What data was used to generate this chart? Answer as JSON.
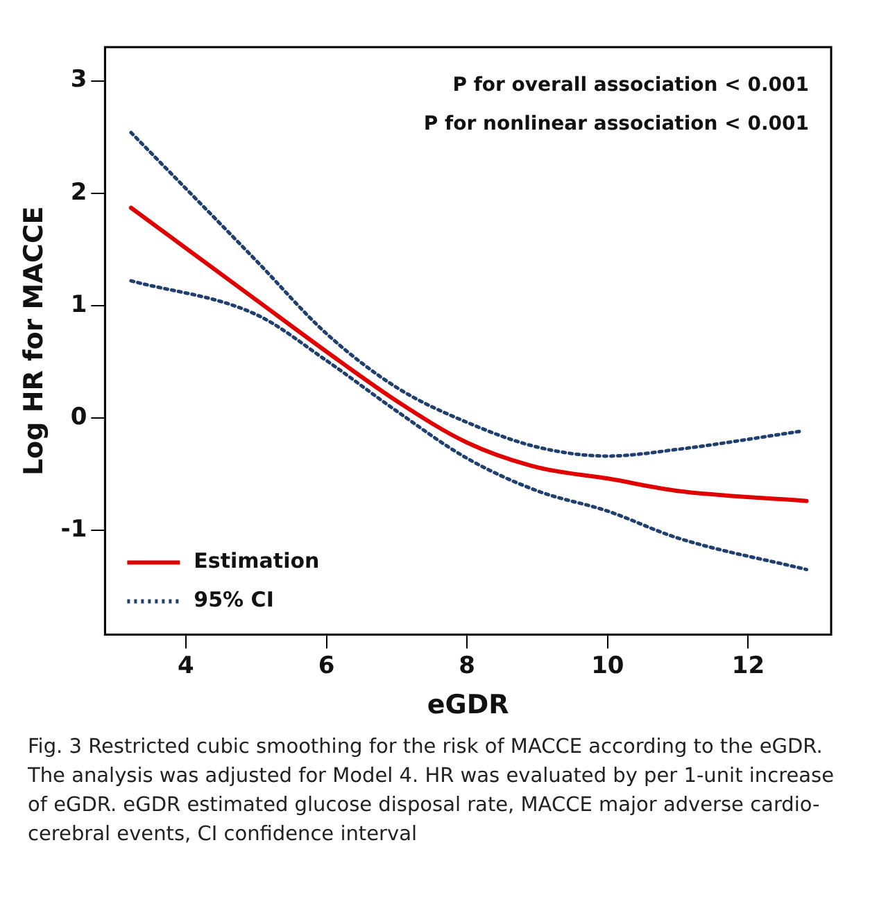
{
  "chart_data": {
    "type": "line",
    "xlabel": "eGDR",
    "ylabel": "Log HR for MACCE",
    "xlim": [
      2.85,
      13.18
    ],
    "xticks": [
      4,
      6,
      8,
      10,
      12
    ],
    "ylim": [
      -1.93,
      3.3
    ],
    "yticks": [
      -1,
      0,
      1,
      2,
      3
    ],
    "grid": false,
    "legend": "bottom left",
    "marker": "none",
    "series": [
      {
        "name": "Estimation",
        "color": "#e00000",
        "line_style": "solid",
        "x": [
          3.22,
          5,
          6,
          7,
          8,
          9,
          10,
          11,
          12.83
        ],
        "values": [
          1.87,
          1.05,
          0.59,
          0.15,
          -0.22,
          -0.44,
          -0.54,
          -0.65,
          -0.74
        ]
      },
      {
        "name": "95% CI",
        "color": "#1f3f6e",
        "line_style": "dotted",
        "x": [
          3.22,
          5,
          6,
          7,
          8,
          9,
          10,
          11,
          12.74
        ],
        "values": [
          2.54,
          1.4,
          0.75,
          0.27,
          -0.04,
          -0.26,
          -0.34,
          -0.28,
          -0.12
        ]
      },
      {
        "color": "#1f3f6e",
        "line_style": "dotted",
        "x": [
          3.22,
          5,
          6,
          7,
          8,
          9,
          10,
          11,
          12.83
        ],
        "values": [
          1.22,
          0.92,
          0.51,
          0.06,
          -0.36,
          -0.65,
          -0.83,
          -1.07,
          -1.35
        ]
      }
    ],
    "annotations": [
      "P for overall association < 0.001",
      "P for nonlinear association < 0.001",
      "Fig. 3  Restricted cubic smoothing for the risk of MACCE according to the eGDR. The analysis was adjusted for Model 4. HR was evaluated by per 1-unit increase of eGDR. eGDR estimated glucose disposal rate, MACCE major adverse cardio-cerebral events, CI confidence interval"
    ]
  }
}
